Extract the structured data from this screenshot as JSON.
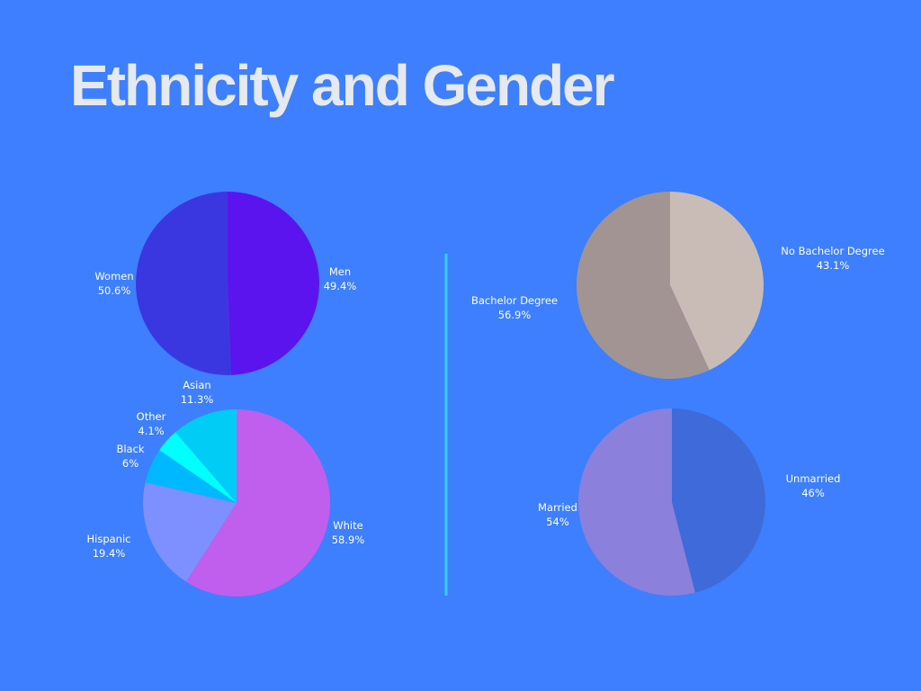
{
  "title": "Ethnicity and Gender",
  "colors": {
    "background": "#3d7fff",
    "divider": "#2ed3e8",
    "title": "#e6e9ef"
  },
  "chart_data": [
    {
      "type": "pie",
      "name": "gender",
      "slices": [
        {
          "label": "Men",
          "value": 49.4,
          "display": "49.4%",
          "color": "#5b14ee"
        },
        {
          "label": "Women",
          "value": 50.6,
          "display": "50.6%",
          "color": "#3b37e0"
        }
      ]
    },
    {
      "type": "pie",
      "name": "ethnicity",
      "slices": [
        {
          "label": "White",
          "value": 58.9,
          "display": "58.9%",
          "color": "#c05eee"
        },
        {
          "label": "Hispanic",
          "value": 19.4,
          "display": "19.4%",
          "color": "#7e90ff"
        },
        {
          "label": "Black",
          "value": 6,
          "display": "6%",
          "color": "#00b8ff"
        },
        {
          "label": "Other",
          "value": 4.1,
          "display": "4.1%",
          "color": "#00ffff"
        },
        {
          "label": "Asian",
          "value": 11.3,
          "display": "11.3%",
          "color": "#00ccf6"
        }
      ]
    },
    {
      "type": "pie",
      "name": "education",
      "slices": [
        {
          "label": "No Bachelor Degree",
          "value": 43.1,
          "display": "43.1%",
          "color": "#c9bcb7"
        },
        {
          "label": "Bachelor Degree",
          "value": 56.9,
          "display": "56.9%",
          "color": "#a29493"
        }
      ]
    },
    {
      "type": "pie",
      "name": "marital-status",
      "slices": [
        {
          "label": "Unmarried",
          "value": 46,
          "display": "46%",
          "color": "#3f6ad9"
        },
        {
          "label": "Married",
          "value": 54,
          "display": "54%",
          "color": "#8b80db"
        }
      ]
    }
  ]
}
